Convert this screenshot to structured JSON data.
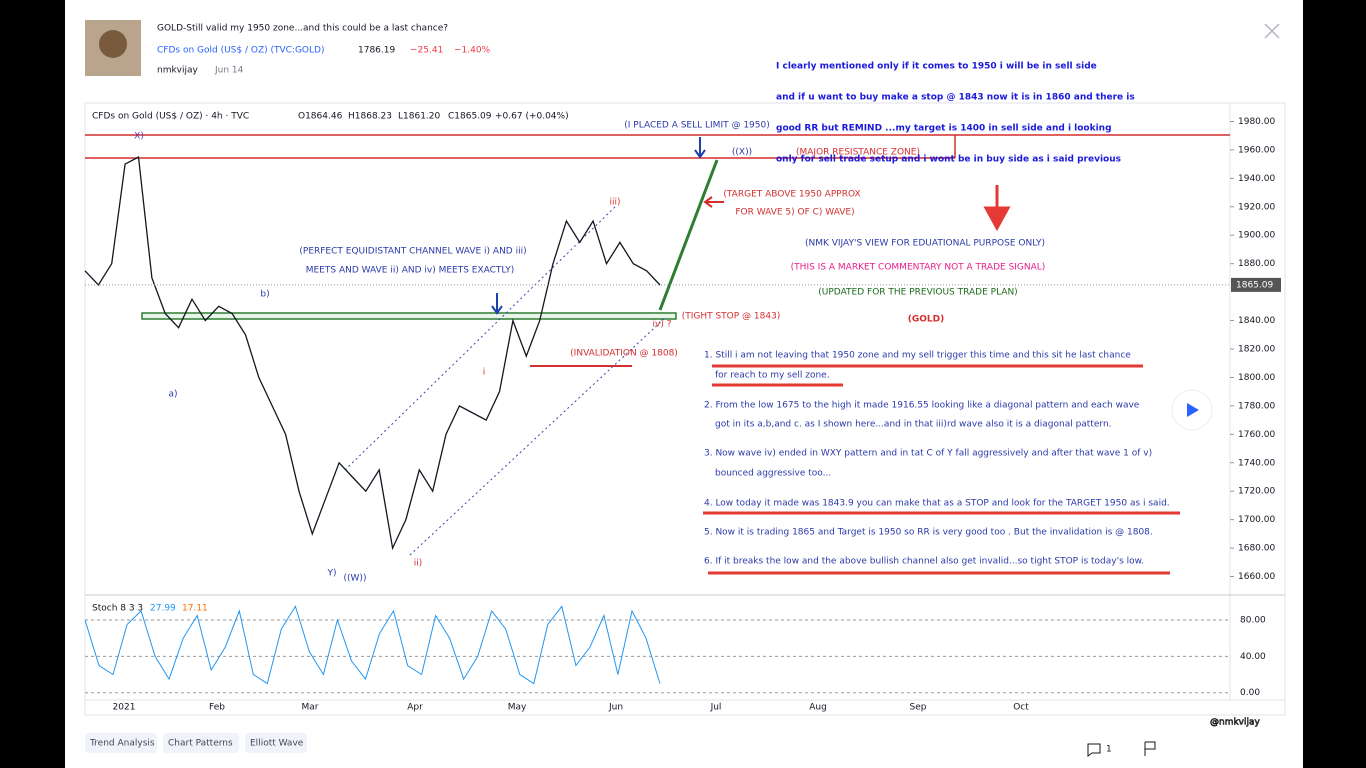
{
  "header": {
    "title": "GOLD-Still valid my 1950 zone...and this could be a last chance?",
    "symbol": "CFDs on Gold (US$ / OZ) (TVC:GOLD)",
    "price": "1786.19",
    "change": "−25.41",
    "change_pct": "−1.40%",
    "author": "nmkvijay",
    "date": "Jun 14"
  },
  "chart": {
    "legend": "CFDs on Gold (US$ / OZ) · 4h · TVC",
    "ohlc": [
      "O1864.46",
      "H1868.23",
      "L1861.20",
      "C1865.09",
      "+0.67 (+0.04%)"
    ],
    "last_price": "1865.09",
    "ylim": [
      1647,
      1993
    ],
    "yticks": [
      {
        "value": 1980,
        "label": "1980.00"
      },
      {
        "value": 1960,
        "label": "1960.00"
      },
      {
        "value": 1940,
        "label": "1940.00"
      },
      {
        "value": 1920,
        "label": "1920.00"
      },
      {
        "value": 1900,
        "label": "1900.00"
      },
      {
        "value": 1880,
        "label": "1880.00"
      },
      {
        "value": 1840,
        "label": "1840.00"
      },
      {
        "value": 1820,
        "label": "1820.00"
      },
      {
        "value": 1800,
        "label": "1800.00"
      },
      {
        "value": 1780,
        "label": "1780.00"
      },
      {
        "value": 1760,
        "label": "1760.00"
      },
      {
        "value": 1740,
        "label": "1740.00"
      },
      {
        "value": 1720,
        "label": "1720.00"
      },
      {
        "value": 1700,
        "label": "1700.00"
      },
      {
        "value": 1680,
        "label": "1680.00"
      },
      {
        "value": 1660,
        "label": "1660.00"
      }
    ],
    "xticks": [
      "2021",
      "Feb",
      "Mar",
      "Apr",
      "May",
      "Jun",
      "Jul",
      "Aug",
      "Sep",
      "Oct"
    ],
    "price": [
      1875,
      1865,
      1880,
      1950,
      1955,
      1870,
      1845,
      1835,
      1855,
      1840,
      1850,
      1845,
      1830,
      1800,
      1780,
      1760,
      1720,
      1690,
      1715,
      1740,
      1730,
      1720,
      1735,
      1680,
      1700,
      1735,
      1720,
      1760,
      1780,
      1775,
      1770,
      1790,
      1840,
      1815,
      1840,
      1880,
      1910,
      1895,
      1910,
      1880,
      1895,
      1880,
      1875,
      1865
    ],
    "annotations": [
      "(I PLACED A SELL LIMIT @ 1950)",
      "((X))",
      "(MAJOR RESISTANCE ZONE)",
      "(TARGET ABOVE 1950 APPROX",
      "FOR WAVE 5) OF C) WAVE)",
      "(PERFECT EQUIDISTANT CHANNEL WAVE i) AND iii)",
      "MEETS AND WAVE ii) AND iv) MEETS EXACTLY)",
      "(TIGHT STOP @ 1843)",
      "(INVALIDATION @ 1808)",
      "X)",
      "b)",
      "a)",
      "Y)",
      "((W))",
      "ii)",
      "iii)",
      "iv) ?",
      "i"
    ],
    "stoch": {
      "name": "Stoch 8 3 3",
      "k": "27.99",
      "d": "17.11",
      "ylim": [
        -8,
        102
      ],
      "yticks": [
        {
          "value": 80,
          "label": "80.00"
        },
        {
          "value": 40,
          "label": "40.00"
        },
        {
          "value": 0,
          "label": "0.00"
        }
      ],
      "values": [
        80,
        30,
        20,
        75,
        90,
        40,
        15,
        60,
        85,
        25,
        50,
        90,
        20,
        10,
        70,
        95,
        45,
        20,
        80,
        35,
        15,
        65,
        90,
        30,
        20,
        85,
        60,
        15,
        40,
        90,
        70,
        20,
        10,
        75,
        95,
        30,
        50,
        85,
        20,
        90,
        60,
        10
      ]
    }
  },
  "commentary": [
    "I clearly mentioned only if it comes to 1950 i will be in sell side",
    "and if u want to buy make a stop @ 1843 now it is in 1860 and there is",
    "good RR but REMIND ...my target is 1400 in sell side and i looking",
    "only for sell trade setup and i wont be in buy side as i said previous"
  ],
  "notes": [
    "(NMK VIJAY'S VIEW FOR EDUATIONAL PURPOSE ONLY)",
    "(THIS IS A MARKET COMMENTARY NOT A TRADE SIGNAL)",
    "(UPDATED FOR THE PREVIOUS TRADE PLAN)",
    "(GOLD)"
  ],
  "points": [
    "1. Still i am not leaving that 1950 zone and my sell trigger this time and this sit he last chance",
    "for reach to my sell zone.",
    "2. From the low 1675 to the high it made 1916.55 looking like a diagonal pattern and each wave",
    "got in its a,b,and c. as I shown here...and in that iii)rd wave also it is a diagonal pattern.",
    "3. Now wave iv) ended in WXY pattern and in tat C of Y fall aggressively and after that wave 1 of v)",
    "bounced aggressive too...",
    "4. Low today it made was 1843.9 you can make that as a STOP and look for the TARGET 1950 as i said.",
    "5. Now it is trading 1865 and Target is 1950  so RR is very good too . But the invalidation is @ 1808.",
    "6. If it breaks the low and the above bullish channel also get invalid...so tight STOP is today's low."
  ],
  "tags": [
    "Trend Analysis",
    "Chart Patterns",
    "Elliott Wave"
  ],
  "comments": "1",
  "watermark": "@nmkvijay"
}
